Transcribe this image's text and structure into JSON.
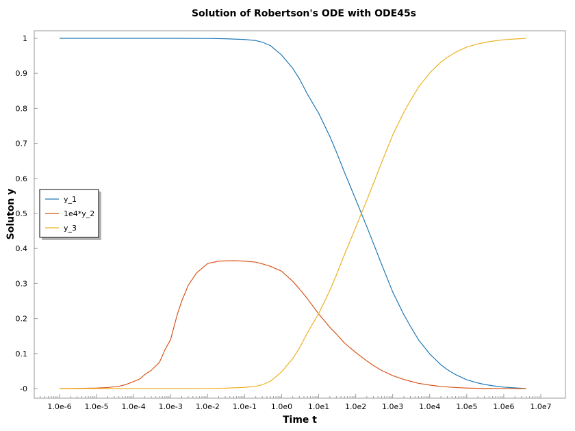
{
  "chart_data": {
    "type": "line",
    "title": "Solution of Robertson's ODE with ODE45s",
    "xlabel": "Time t",
    "ylabel": "Soluton y",
    "x_scale": "log",
    "xlim": [
      1e-06,
      10000000.0
    ],
    "ylim": [
      0,
      1
    ],
    "x_tick_labels": [
      "1.0e-6",
      "1.0e-5",
      "1.0e-4",
      "1.0e-3",
      "1.0e-2",
      "1.0e-1",
      "1.0e0",
      "1.0e1",
      "1.0e2",
      "1.0e3",
      "1.0e4",
      "1.0e5",
      "1.0e6",
      "1.0e7"
    ],
    "y_tick_labels": [
      "-0",
      "0.1",
      "0.2",
      "0.3",
      "0.4",
      "0.5",
      "0.6",
      "0.7",
      "0.8",
      "0.9",
      "1"
    ],
    "grid": false,
    "legend_position": "left-center",
    "series": [
      {
        "name": "y_1",
        "color": "#1f77b4",
        "x": [
          1e-06,
          1e-05,
          0.0001,
          0.001,
          0.01,
          0.03,
          0.1,
          0.2,
          0.3,
          0.5,
          1,
          2,
          3,
          5,
          10,
          20,
          30,
          50,
          100,
          200,
          300,
          500,
          1000,
          2000,
          3000,
          5000,
          10000,
          20000,
          30000,
          50000,
          100000,
          200000,
          300000,
          500000,
          1000000,
          4000000
        ],
        "y": [
          1,
          1,
          1,
          1,
          0.9996,
          0.9988,
          0.9966,
          0.9936,
          0.989,
          0.979,
          0.952,
          0.914,
          0.885,
          0.84,
          0.786,
          0.72,
          0.676,
          0.617,
          0.54,
          0.462,
          0.415,
          0.355,
          0.276,
          0.211,
          0.178,
          0.139,
          0.099,
          0.068,
          0.054,
          0.04,
          0.025,
          0.016,
          0.012,
          0.008,
          0.004,
          0
        ]
      },
      {
        "name": "1e4*y_2",
        "color": "#d95319",
        "x": [
          1e-06,
          3e-06,
          1e-05,
          2e-05,
          4e-05,
          6e-05,
          0.0001,
          0.00015,
          0.0002,
          0.0003,
          0.0005,
          0.0007,
          0.001,
          0.0015,
          0.002,
          0.003,
          0.005,
          0.01,
          0.02,
          0.05,
          0.1,
          0.2,
          0.3,
          0.5,
          1,
          2,
          3,
          5,
          10,
          20,
          30,
          50,
          100,
          200,
          300,
          500,
          1000,
          2000,
          3000,
          5000,
          10000,
          20000,
          50000,
          100000,
          200000,
          500000,
          1000000,
          4000000
        ],
        "y": [
          0,
          0.0005,
          0.0015,
          0.003,
          0.0065,
          0.011,
          0.02,
          0.028,
          0.04,
          0.052,
          0.075,
          0.11,
          0.14,
          0.21,
          0.25,
          0.295,
          0.33,
          0.357,
          0.364,
          0.365,
          0.364,
          0.361,
          0.356,
          0.349,
          0.335,
          0.306,
          0.285,
          0.256,
          0.213,
          0.175,
          0.156,
          0.13,
          0.103,
          0.079,
          0.066,
          0.052,
          0.037,
          0.026,
          0.021,
          0.015,
          0.01,
          0.006,
          0.003,
          0.0015,
          0.0007,
          0.0002,
          0.0001,
          0
        ]
      },
      {
        "name": "y_3",
        "color": "#edb120",
        "x": [
          1e-06,
          1e-05,
          0.0001,
          0.001,
          0.01,
          0.03,
          0.1,
          0.2,
          0.3,
          0.5,
          1,
          2,
          3,
          5,
          10,
          20,
          30,
          50,
          100,
          200,
          300,
          500,
          1000,
          2000,
          3000,
          5000,
          10000,
          20000,
          30000,
          50000,
          100000,
          200000,
          300000,
          500000,
          1000000,
          4000000
        ],
        "y": [
          0,
          0,
          0,
          0,
          0.0004,
          0.0012,
          0.0034,
          0.0064,
          0.011,
          0.021,
          0.048,
          0.086,
          0.115,
          0.16,
          0.214,
          0.28,
          0.324,
          0.383,
          0.46,
          0.538,
          0.585,
          0.645,
          0.724,
          0.789,
          0.822,
          0.861,
          0.901,
          0.932,
          0.946,
          0.96,
          0.975,
          0.984,
          0.988,
          0.992,
          0.996,
          1
        ]
      }
    ]
  }
}
